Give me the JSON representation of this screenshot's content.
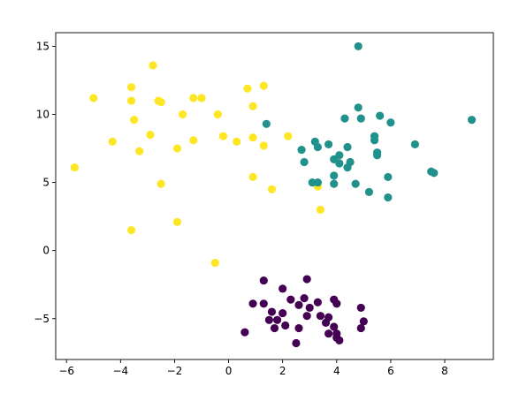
{
  "chart_data": {
    "type": "scatter",
    "title": "",
    "xlabel": "",
    "ylabel": "",
    "xlim": [
      -6.4,
      9.8
    ],
    "ylim": [
      -8.0,
      16.0
    ],
    "grid": false,
    "x_ticks": [
      -6,
      -4,
      -2,
      0,
      2,
      4,
      6,
      8
    ],
    "y_ticks": [
      -5,
      0,
      5,
      10,
      15
    ],
    "series": [
      {
        "color": "#fde725",
        "points": [
          [
            -2.8,
            13.6
          ],
          [
            -5.0,
            11.2
          ],
          [
            -3.6,
            12.0
          ],
          [
            -3.6,
            11.0
          ],
          [
            -2.6,
            11.0
          ],
          [
            -2.5,
            10.9
          ],
          [
            -1.3,
            11.2
          ],
          [
            -1.0,
            11.2
          ],
          [
            0.7,
            11.9
          ],
          [
            1.3,
            12.1
          ],
          [
            -3.5,
            9.6
          ],
          [
            -1.7,
            10.0
          ],
          [
            -0.4,
            10.0
          ],
          [
            0.9,
            10.6
          ],
          [
            -4.3,
            8.0
          ],
          [
            -3.3,
            7.3
          ],
          [
            -2.9,
            8.5
          ],
          [
            -1.9,
            7.5
          ],
          [
            -1.3,
            8.1
          ],
          [
            -0.2,
            8.4
          ],
          [
            0.3,
            8.0
          ],
          [
            0.9,
            8.3
          ],
          [
            1.3,
            7.7
          ],
          [
            2.2,
            8.4
          ],
          [
            -5.7,
            6.1
          ],
          [
            -2.5,
            4.9
          ],
          [
            0.9,
            5.4
          ],
          [
            1.6,
            4.5
          ],
          [
            3.3,
            4.7
          ],
          [
            3.4,
            3.0
          ],
          [
            -3.6,
            1.5
          ],
          [
            -1.9,
            2.1
          ],
          [
            -0.5,
            -0.9
          ]
        ]
      },
      {
        "color": "#21918c",
        "points": [
          [
            4.8,
            15.0
          ],
          [
            4.8,
            10.5
          ],
          [
            4.3,
            9.7
          ],
          [
            4.9,
            9.7
          ],
          [
            5.6,
            9.9
          ],
          [
            6.0,
            9.4
          ],
          [
            9.0,
            9.6
          ],
          [
            1.4,
            9.3
          ],
          [
            3.2,
            8.0
          ],
          [
            3.3,
            7.6
          ],
          [
            3.7,
            7.8
          ],
          [
            2.7,
            7.4
          ],
          [
            5.4,
            8.4
          ],
          [
            5.4,
            8.1
          ],
          [
            6.9,
            7.8
          ],
          [
            4.1,
            7.0
          ],
          [
            3.9,
            6.7
          ],
          [
            4.4,
            7.6
          ],
          [
            5.5,
            7.0
          ],
          [
            5.5,
            7.2
          ],
          [
            2.8,
            6.5
          ],
          [
            4.5,
            6.5
          ],
          [
            4.1,
            6.4
          ],
          [
            4.4,
            6.1
          ],
          [
            3.9,
            5.5
          ],
          [
            5.9,
            5.4
          ],
          [
            7.5,
            5.8
          ],
          [
            7.6,
            5.7
          ],
          [
            3.1,
            5.0
          ],
          [
            3.3,
            5.0
          ],
          [
            3.9,
            4.9
          ],
          [
            4.7,
            4.9
          ],
          [
            5.2,
            4.3
          ],
          [
            5.9,
            3.9
          ]
        ]
      },
      {
        "color": "#440154",
        "points": [
          [
            1.3,
            -2.2
          ],
          [
            2.9,
            -2.1
          ],
          [
            2.0,
            -2.8
          ],
          [
            2.3,
            -3.6
          ],
          [
            2.8,
            -3.5
          ],
          [
            3.3,
            -3.8
          ],
          [
            3.9,
            -3.6
          ],
          [
            0.9,
            -3.9
          ],
          [
            1.3,
            -3.9
          ],
          [
            3.0,
            -4.2
          ],
          [
            4.0,
            -3.9
          ],
          [
            2.6,
            -4.0
          ],
          [
            4.9,
            -4.2
          ],
          [
            1.6,
            -4.5
          ],
          [
            2.0,
            -4.6
          ],
          [
            3.4,
            -4.8
          ],
          [
            2.9,
            -4.8
          ],
          [
            3.7,
            -4.9
          ],
          [
            1.5,
            -5.1
          ],
          [
            1.8,
            -5.1
          ],
          [
            5.0,
            -5.2
          ],
          [
            2.1,
            -5.5
          ],
          [
            3.6,
            -5.3
          ],
          [
            1.7,
            -5.7
          ],
          [
            2.6,
            -5.7
          ],
          [
            3.9,
            -5.6
          ],
          [
            4.9,
            -5.7
          ],
          [
            0.6,
            -6.0
          ],
          [
            3.7,
            -6.1
          ],
          [
            4.0,
            -6.1
          ],
          [
            4.0,
            -6.4
          ],
          [
            4.1,
            -6.6
          ],
          [
            2.5,
            -6.8
          ]
        ]
      }
    ]
  }
}
